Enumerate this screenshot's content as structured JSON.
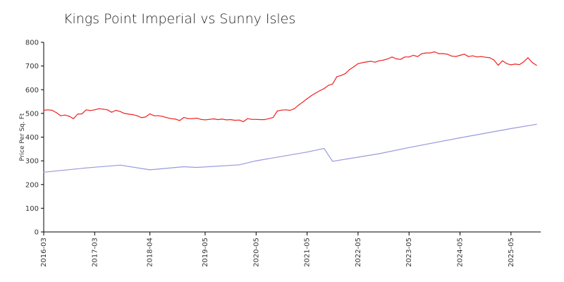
{
  "chart_data": {
    "type": "line",
    "title": "Kings Point Imperial vs Sunny Isles",
    "xlabel": "",
    "ylabel": "Price Per Sq. Ft",
    "ylim": [
      0,
      800
    ],
    "yticks": [
      0,
      100,
      200,
      300,
      400,
      500,
      600,
      700,
      800
    ],
    "xlim": [
      "2016-03",
      "2025-12"
    ],
    "xticks": [
      "2016-03",
      "2017-03",
      "2018-04",
      "2019-05",
      "2020-05",
      "2021-05",
      "2022-05",
      "2023-05",
      "2024-05",
      "2025-05"
    ],
    "grid": false,
    "legend": "none",
    "colors": {
      "series_1": "#ee2222",
      "series_2": "#9999dd",
      "axis": "#000000"
    },
    "series": [
      {
        "color": "#ee2222",
        "points": [
          [
            "2016-03",
            513
          ],
          [
            "2016-04",
            515
          ],
          [
            "2016-05",
            513
          ],
          [
            "2016-06",
            503
          ],
          [
            "2016-07",
            490
          ],
          [
            "2016-08",
            493
          ],
          [
            "2016-09",
            488
          ],
          [
            "2016-10",
            478
          ],
          [
            "2016-11",
            497
          ],
          [
            "2016-12",
            498
          ],
          [
            "2017-01",
            515
          ],
          [
            "2017-02",
            512
          ],
          [
            "2017-03",
            515
          ],
          [
            "2017-04",
            520
          ],
          [
            "2017-05",
            518
          ],
          [
            "2017-06",
            515
          ],
          [
            "2017-07",
            505
          ],
          [
            "2017-08",
            513
          ],
          [
            "2017-09",
            508
          ],
          [
            "2017-10",
            500
          ],
          [
            "2017-11",
            497
          ],
          [
            "2017-12",
            495
          ],
          [
            "2018-01",
            490
          ],
          [
            "2018-02",
            482
          ],
          [
            "2018-03",
            485
          ],
          [
            "2018-04",
            498
          ],
          [
            "2018-05",
            490
          ],
          [
            "2018-06",
            490
          ],
          [
            "2018-07",
            487
          ],
          [
            "2018-08",
            482
          ],
          [
            "2018-09",
            478
          ],
          [
            "2018-10",
            476
          ],
          [
            "2018-11",
            470
          ],
          [
            "2018-12",
            483
          ],
          [
            "2019-01",
            478
          ],
          [
            "2019-02",
            478
          ],
          [
            "2019-03",
            480
          ],
          [
            "2019-04",
            475
          ],
          [
            "2019-05",
            473
          ],
          [
            "2019-06",
            475
          ],
          [
            "2019-07",
            477
          ],
          [
            "2019-08",
            474
          ],
          [
            "2019-09",
            476
          ],
          [
            "2019-10",
            473
          ],
          [
            "2019-11",
            474
          ],
          [
            "2019-12",
            471
          ],
          [
            "2020-01",
            472
          ],
          [
            "2020-02",
            465
          ],
          [
            "2020-03",
            478
          ],
          [
            "2020-04",
            475
          ],
          [
            "2020-05",
            475
          ],
          [
            "2020-06",
            474
          ],
          [
            "2020-07",
            474
          ],
          [
            "2020-08",
            478
          ],
          [
            "2020-09",
            483
          ],
          [
            "2020-10",
            510
          ],
          [
            "2020-11",
            514
          ],
          [
            "2020-12",
            515
          ],
          [
            "2021-01",
            513
          ],
          [
            "2021-02",
            520
          ],
          [
            "2021-03",
            535
          ],
          [
            "2021-04",
            548
          ],
          [
            "2021-05",
            562
          ],
          [
            "2021-06",
            575
          ],
          [
            "2021-07",
            586
          ],
          [
            "2021-08",
            596
          ],
          [
            "2021-09",
            605
          ],
          [
            "2021-10",
            618
          ],
          [
            "2021-11",
            624
          ],
          [
            "2021-12",
            655
          ],
          [
            "2022-01",
            660
          ],
          [
            "2022-02",
            668
          ],
          [
            "2022-03",
            685
          ],
          [
            "2022-04",
            697
          ],
          [
            "2022-05",
            710
          ],
          [
            "2022-06",
            714
          ],
          [
            "2022-07",
            717
          ],
          [
            "2022-08",
            720
          ],
          [
            "2022-09",
            716
          ],
          [
            "2022-10",
            722
          ],
          [
            "2022-11",
            725
          ],
          [
            "2022-12",
            730
          ],
          [
            "2023-01",
            738
          ],
          [
            "2023-02",
            730
          ],
          [
            "2023-03",
            728
          ],
          [
            "2023-04",
            738
          ],
          [
            "2023-05",
            738
          ],
          [
            "2023-06",
            745
          ],
          [
            "2023-07",
            740
          ],
          [
            "2023-08",
            752
          ],
          [
            "2023-09",
            755
          ],
          [
            "2023-10",
            755
          ],
          [
            "2023-11",
            760
          ],
          [
            "2023-12",
            752
          ],
          [
            "2024-01",
            752
          ],
          [
            "2024-02",
            750
          ],
          [
            "2024-03",
            742
          ],
          [
            "2024-04",
            740
          ],
          [
            "2024-05",
            745
          ],
          [
            "2024-06",
            750
          ],
          [
            "2024-07",
            740
          ],
          [
            "2024-08",
            743
          ],
          [
            "2024-09",
            738
          ],
          [
            "2024-10",
            740
          ],
          [
            "2024-11",
            737
          ],
          [
            "2024-12",
            735
          ],
          [
            "2025-01",
            725
          ],
          [
            "2025-02",
            703
          ],
          [
            "2025-03",
            722
          ],
          [
            "2025-04",
            710
          ],
          [
            "2025-05",
            705
          ],
          [
            "2025-06",
            708
          ],
          [
            "2025-07",
            706
          ],
          [
            "2025-08",
            718
          ],
          [
            "2025-09",
            735
          ],
          [
            "2025-10",
            715
          ],
          [
            "2025-11",
            703
          ]
        ]
      },
      {
        "color": "#9999dd",
        "points": [
          [
            "2016-03",
            252
          ],
          [
            "2017-01",
            270
          ],
          [
            "2017-09",
            282
          ],
          [
            "2018-04",
            262
          ],
          [
            "2018-12",
            275
          ],
          [
            "2019-03",
            272
          ],
          [
            "2020-01",
            283
          ],
          [
            "2020-05",
            300
          ],
          [
            "2021-05",
            337
          ],
          [
            "2021-09",
            352
          ],
          [
            "2021-11",
            298
          ],
          [
            "2022-10",
            330
          ],
          [
            "2023-05",
            356
          ],
          [
            "2024-05",
            397
          ],
          [
            "2025-05",
            436
          ],
          [
            "2025-11",
            454
          ]
        ]
      }
    ]
  }
}
